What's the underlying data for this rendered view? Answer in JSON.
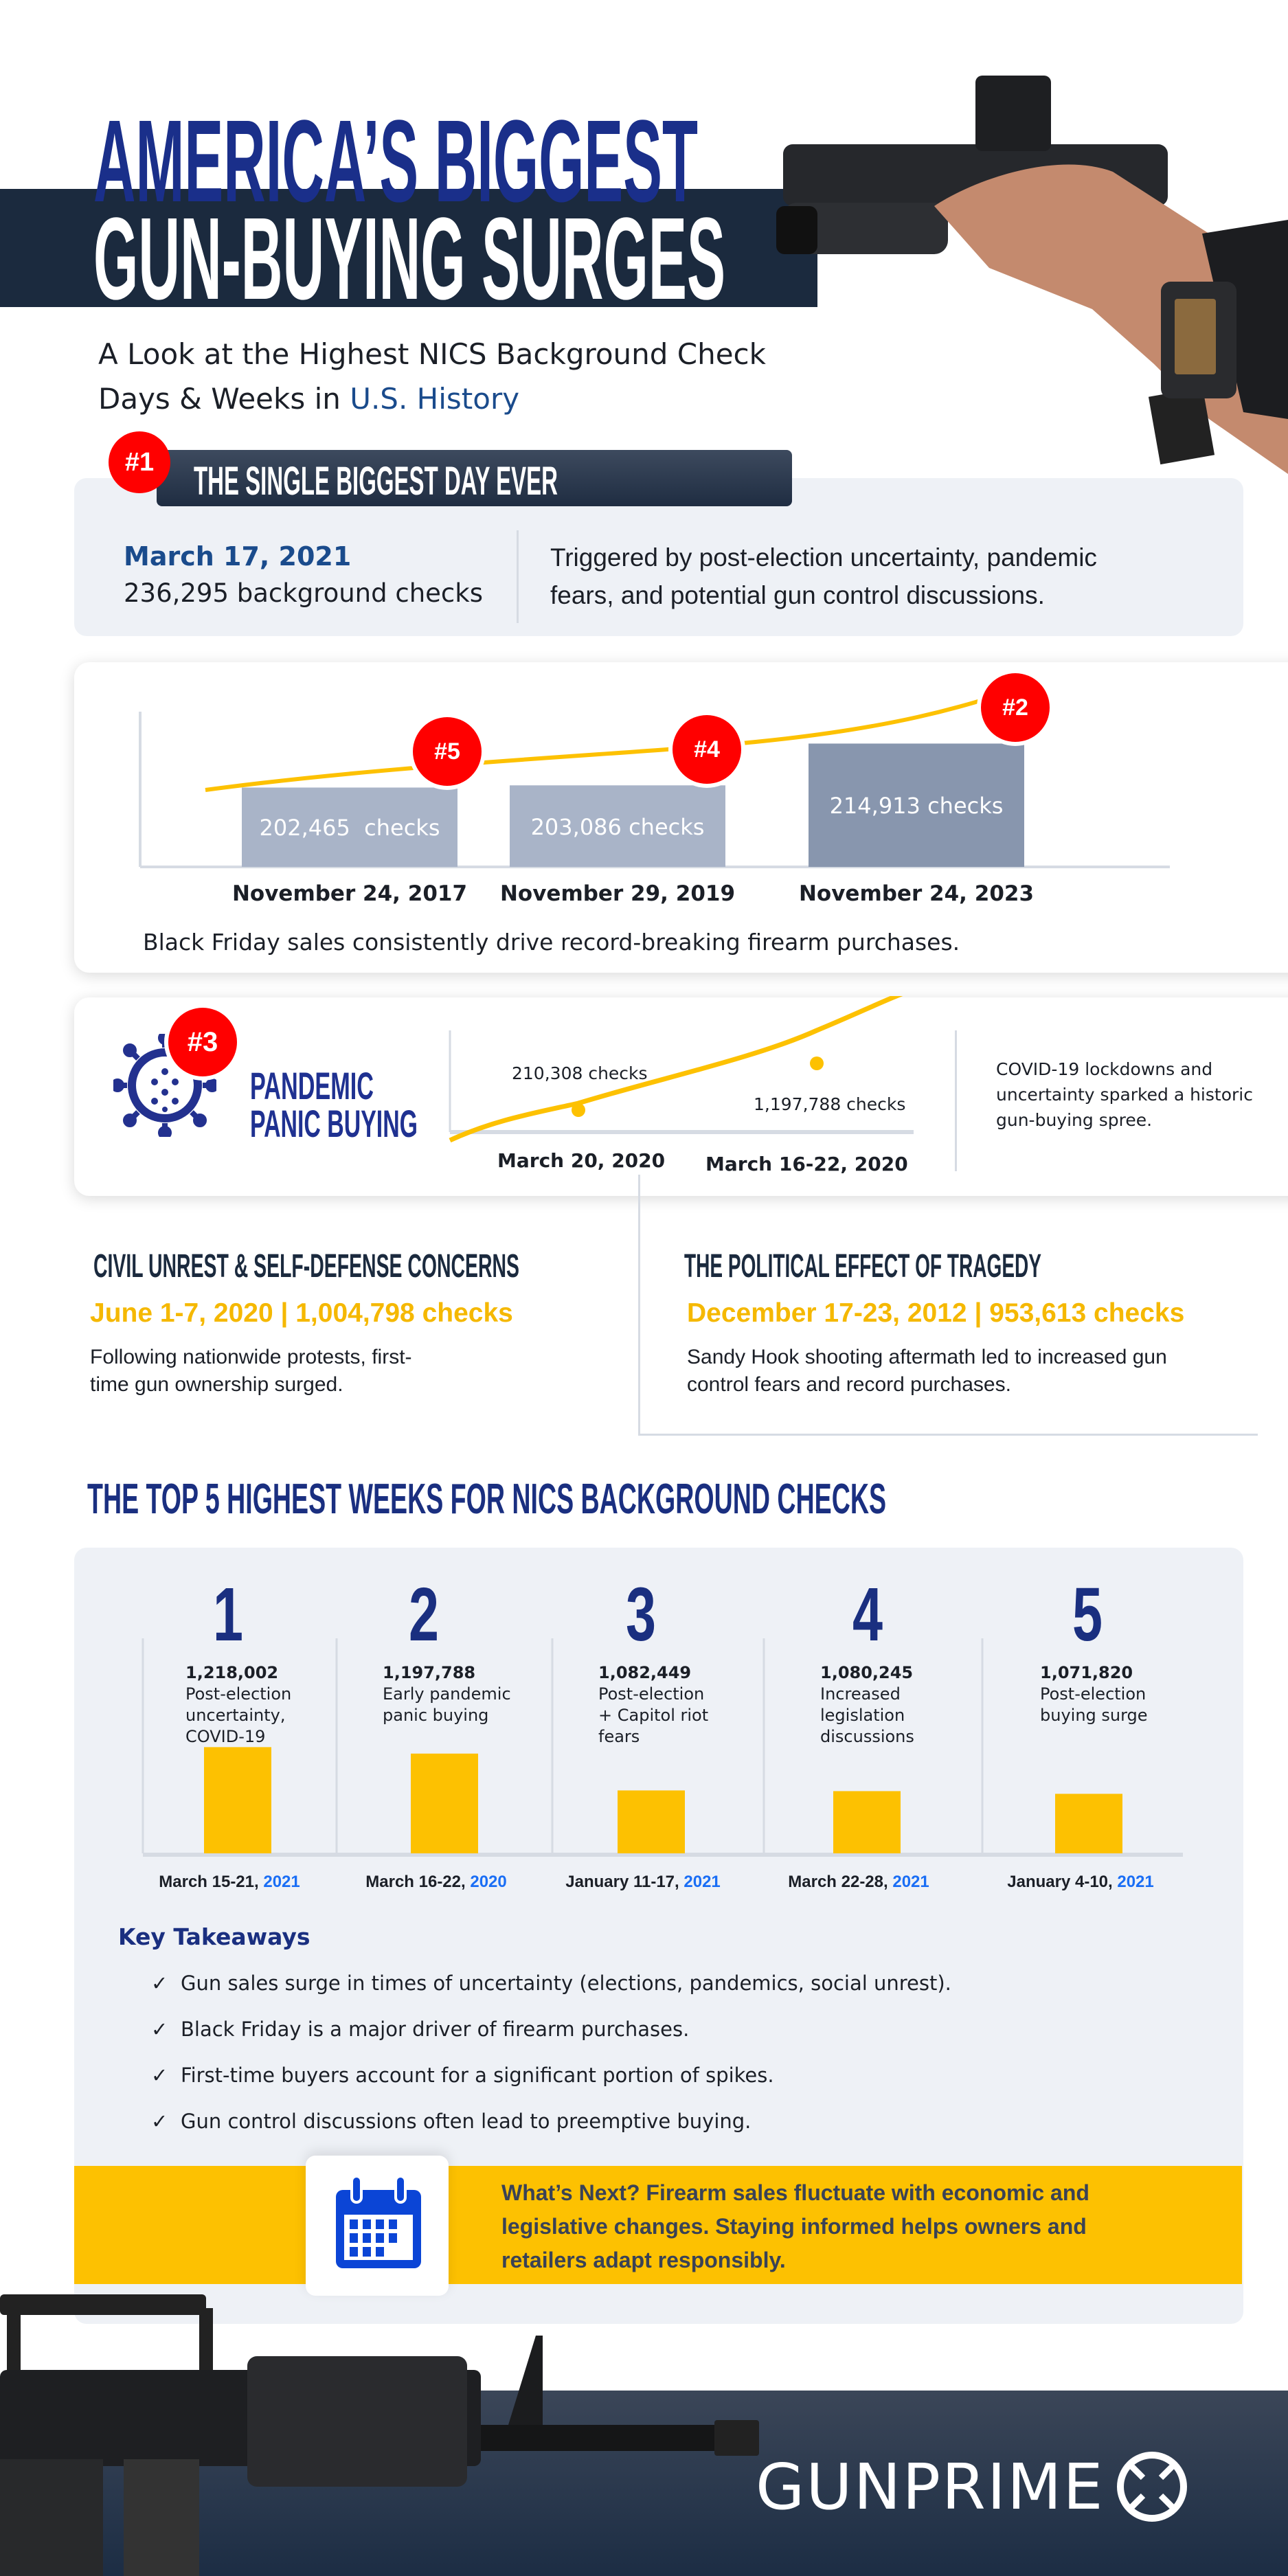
{
  "header": {
    "title_line1": "AMERICA’S BIGGEST",
    "title_line2": "GUN-BUYING SURGES",
    "subtitle_line1": "A Look at the Highest NICS Background Check",
    "subtitle_line2_prefix": "Days & Weeks in ",
    "subtitle_line2_highlight": "U.S. History"
  },
  "biggest_day": {
    "badge": "#1",
    "heading": "THE SINGLE BIGGEST DAY EVER",
    "date": "March 17, 2021",
    "count": "236,295 background checks",
    "description_line1": "Triggered by post-election uncertainty, pandemic",
    "description_line2": "fears, and potential gun control discussions."
  },
  "black_friday": {
    "caption": "Black Friday sales consistently drive record-breaking firearm purchases.",
    "bars": [
      {
        "date": "November 24, 2017",
        "label": "202,465  checks",
        "value": 202465,
        "rank": "#5"
      },
      {
        "date": "November 29, 2019",
        "label": "203,086 checks",
        "value": 203086,
        "rank": "#4"
      },
      {
        "date": "November 24, 2023",
        "label": "214,913 checks",
        "value": 214913,
        "rank": "#2"
      }
    ]
  },
  "pandemic": {
    "badge": "#3",
    "title_line1": "PANDEMIC",
    "title_line2": "PANIC BUYING",
    "point1_label": "210,308 checks",
    "point1_date": "March 20, 2020",
    "point2_label": "1,197,788 checks",
    "point2_date": "March 16-22, 2020",
    "description_line1": "COVID-19 lockdowns and",
    "description_line2": "uncertainty sparked a historic",
    "description_line3": "gun-buying spree."
  },
  "civil_unrest": {
    "heading": "CIVIL UNREST & SELF-DEFENSE CONCERNS",
    "stat": "June 1-7, 2020 | 1,004,798 checks",
    "text_line1": "Following nationwide protests, first-",
    "text_line2": "time gun ownership surged."
  },
  "tragedy": {
    "heading": "THE POLITICAL EFFECT OF TRAGEDY",
    "stat": "December 17-23, 2012 | 953,613 checks",
    "text_line1": "Sandy Hook shooting aftermath led to increased gun",
    "text_line2": "control fears and record purchases."
  },
  "chart_data": {
    "type": "bar",
    "title": "THE TOP 5 HIGHEST WEEKS FOR NICS BACKGROUND CHECKS",
    "categories": [
      "1",
      "2",
      "3",
      "4",
      "5"
    ],
    "values": [
      1218002,
      1197788,
      1082449,
      1080245,
      1071820
    ],
    "value_labels": [
      "1,218,002",
      "1,197,788",
      "1,082,449",
      "1,080,245",
      "1,071,820"
    ],
    "descriptions": [
      [
        "Post-election",
        "uncertainty,",
        "COVID-19"
      ],
      [
        "Early pandemic",
        "panic buying"
      ],
      [
        "Post-election",
        "+ Capitol riot",
        "fears"
      ],
      [
        "Increased",
        "legislation",
        "discussions"
      ],
      [
        "Post-election",
        "buying surge"
      ]
    ],
    "dates": [
      "March 15-21, ",
      "March 16-22, ",
      "January 11-17, ",
      "March 22-28, ",
      "January 4-10, "
    ],
    "years": [
      "2021",
      "2020",
      "2021",
      "2021",
      "2021"
    ],
    "bar_color": "#fdc101",
    "grid": false
  },
  "takeaways": {
    "heading": "Key Takeaways",
    "check": "✓",
    "items": [
      "Gun sales surge in times of uncertainty (elections, pandemics, social unrest).",
      "Black Friday is a major driver of firearm purchases.",
      "First-time buyers account for a significant portion of spikes.",
      "Gun control discussions often lead to preemptive buying."
    ]
  },
  "whats_next": {
    "icon": "calendar-icon",
    "line1": "What’s Next? Firearm sales fluctuate with economic and",
    "line2": "legislative changes. Staying informed helps owners and",
    "line3": "retailers adapt responsibly."
  },
  "footer": {
    "logo": "GUNPRIME"
  },
  "colors": {
    "navy": "#1b2a3e",
    "title_blue": "#1a2f80",
    "accent_yellow": "#fdc101",
    "badge_red": "#ff0000",
    "link_blue": "#1a4b8c",
    "year_blue": "#1a6ef5"
  }
}
